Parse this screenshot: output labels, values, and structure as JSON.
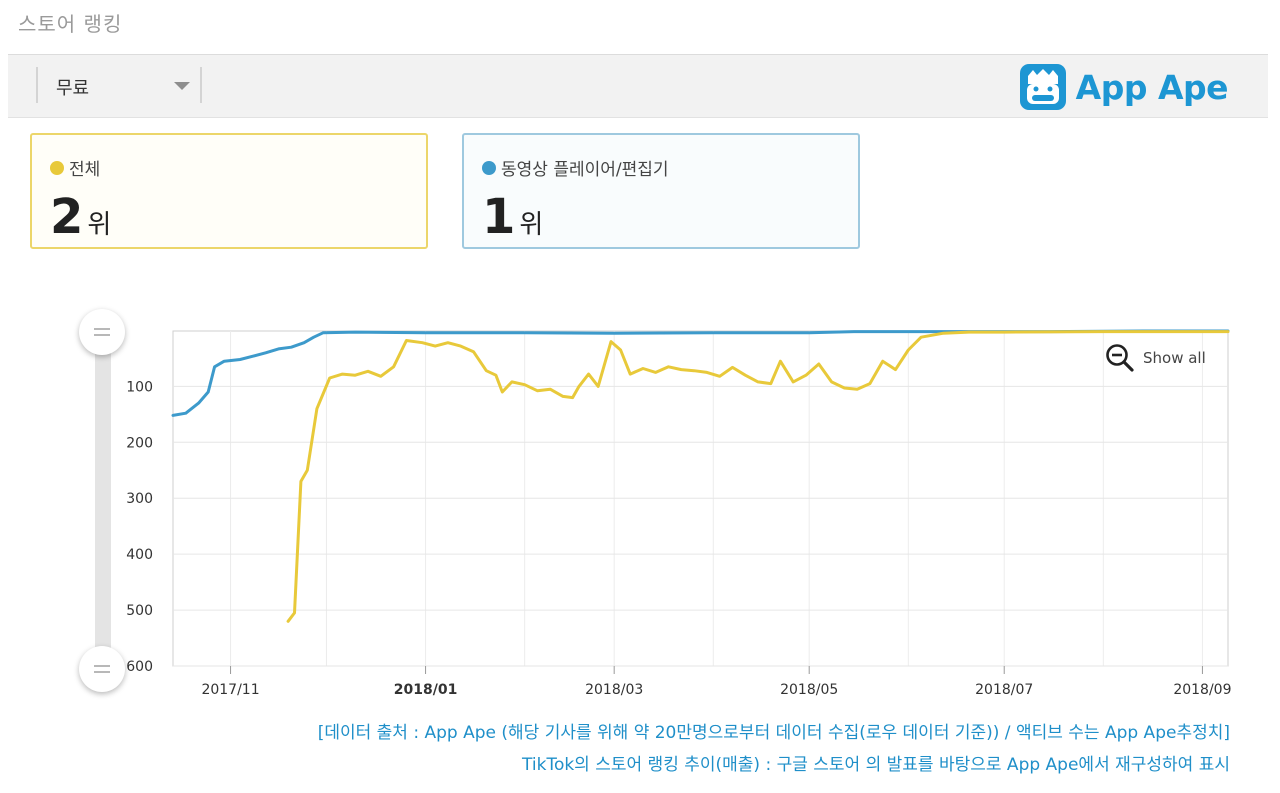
{
  "header": {
    "title": "스토어 랭킹"
  },
  "toolbar": {
    "filter_selected": "무료",
    "brand": "App Ape"
  },
  "cards": [
    {
      "legend": "전체",
      "rank": "2",
      "unit": "위",
      "color": "#e8c93a"
    },
    {
      "legend": "동영상 플레이어/편집기",
      "rank": "1",
      "unit": "위",
      "color": "#3d9acb"
    }
  ],
  "chart_controls": {
    "show_all_label": "Show all"
  },
  "chart_data": {
    "type": "line",
    "y_inverted": true,
    "ylim": [
      1,
      600
    ],
    "xlim": [
      "2017-10-14",
      "2018-09-09"
    ],
    "y_ticks": [
      "100",
      "200",
      "300",
      "400",
      "500",
      "600"
    ],
    "x_ticks": [
      {
        "label": "2017/11",
        "date": "2017-11-01"
      },
      {
        "label": "2018/01",
        "date": "2018-01-01"
      },
      {
        "label": "2018/03",
        "date": "2018-03-01"
      },
      {
        "label": "2018/05",
        "date": "2018-05-01"
      },
      {
        "label": "2018/07",
        "date": "2018-07-01"
      },
      {
        "label": "2018/09",
        "date": "2018-09-01"
      }
    ],
    "grid": true,
    "series": [
      {
        "color": "#3d9acb",
        "points": [
          [
            "2017-10-14",
            152
          ],
          [
            "2017-10-18",
            148
          ],
          [
            "2017-10-22",
            130
          ],
          [
            "2017-10-25",
            110
          ],
          [
            "2017-10-27",
            65
          ],
          [
            "2017-10-30",
            55
          ],
          [
            "2017-11-04",
            52
          ],
          [
            "2017-11-08",
            46
          ],
          [
            "2017-11-12",
            40
          ],
          [
            "2017-11-16",
            33
          ],
          [
            "2017-11-20",
            30
          ],
          [
            "2017-11-24",
            22
          ],
          [
            "2017-11-27",
            12
          ],
          [
            "2017-11-30",
            4
          ],
          [
            "2017-12-10",
            3
          ],
          [
            "2018-01-01",
            4
          ],
          [
            "2018-02-01",
            4
          ],
          [
            "2018-03-01",
            5
          ],
          [
            "2018-04-01",
            4
          ],
          [
            "2018-05-01",
            4
          ],
          [
            "2018-05-15",
            2
          ],
          [
            "2018-06-15",
            2
          ],
          [
            "2018-07-15",
            2
          ],
          [
            "2018-08-15",
            1
          ],
          [
            "2018-09-09",
            1
          ]
        ]
      },
      {
        "color": "#e8c93a",
        "points": [
          [
            "2017-11-19",
            520
          ],
          [
            "2017-11-21",
            505
          ],
          [
            "2017-11-23",
            270
          ],
          [
            "2017-11-25",
            250
          ],
          [
            "2017-11-28",
            140
          ],
          [
            "2017-12-02",
            85
          ],
          [
            "2017-12-06",
            78
          ],
          [
            "2017-12-10",
            80
          ],
          [
            "2017-12-14",
            73
          ],
          [
            "2017-12-18",
            82
          ],
          [
            "2017-12-22",
            65
          ],
          [
            "2017-12-26",
            18
          ],
          [
            "2017-12-31",
            22
          ],
          [
            "2018-01-04",
            28
          ],
          [
            "2018-01-08",
            22
          ],
          [
            "2018-01-12",
            28
          ],
          [
            "2018-01-16",
            38
          ],
          [
            "2018-01-20",
            72
          ],
          [
            "2018-01-23",
            80
          ],
          [
            "2018-01-25",
            110
          ],
          [
            "2018-01-28",
            92
          ],
          [
            "2018-02-01",
            97
          ],
          [
            "2018-02-05",
            108
          ],
          [
            "2018-02-09",
            105
          ],
          [
            "2018-02-13",
            118
          ],
          [
            "2018-02-16",
            120
          ],
          [
            "2018-02-18",
            100
          ],
          [
            "2018-02-21",
            78
          ],
          [
            "2018-02-24",
            100
          ],
          [
            "2018-02-28",
            20
          ],
          [
            "2018-03-03",
            35
          ],
          [
            "2018-03-06",
            78
          ],
          [
            "2018-03-10",
            68
          ],
          [
            "2018-03-14",
            75
          ],
          [
            "2018-03-18",
            65
          ],
          [
            "2018-03-22",
            70
          ],
          [
            "2018-03-26",
            72
          ],
          [
            "2018-03-30",
            75
          ],
          [
            "2018-04-03",
            82
          ],
          [
            "2018-04-07",
            66
          ],
          [
            "2018-04-11",
            80
          ],
          [
            "2018-04-15",
            92
          ],
          [
            "2018-04-19",
            95
          ],
          [
            "2018-04-22",
            55
          ],
          [
            "2018-04-26",
            92
          ],
          [
            "2018-04-30",
            80
          ],
          [
            "2018-05-04",
            60
          ],
          [
            "2018-05-08",
            92
          ],
          [
            "2018-05-12",
            103
          ],
          [
            "2018-05-16",
            105
          ],
          [
            "2018-05-20",
            95
          ],
          [
            "2018-05-24",
            55
          ],
          [
            "2018-05-28",
            70
          ],
          [
            "2018-06-01",
            35
          ],
          [
            "2018-06-05",
            12
          ],
          [
            "2018-06-12",
            5
          ],
          [
            "2018-06-20",
            3
          ],
          [
            "2018-07-01",
            3
          ],
          [
            "2018-08-01",
            2
          ],
          [
            "2018-09-09",
            2
          ]
        ]
      }
    ]
  },
  "captions": [
    "[데이터 출처 : App Ape (해당 기사를 위해 약 20만명으로부터 데이터 수집(로우 데이터 기준)) / 액티브 수는 App Ape추정치]",
    "TikTok의 스토어 랭킹 추이(매출) : 구글 스토어 의 발표를 바탕으로 App Ape에서 재구성하여 표시"
  ]
}
